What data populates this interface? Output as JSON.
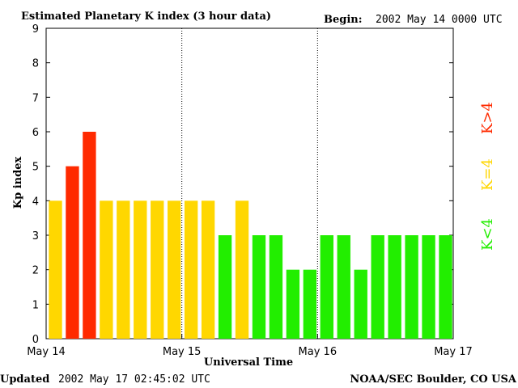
{
  "header": {
    "title": "Estimated Planetary K index (3 hour data)",
    "begin_label": "Begin:",
    "begin_value": "2002 May 14 0000 UTC"
  },
  "footer": {
    "updated_label": "Updated",
    "updated_value": "2002 May 17 02:45:02 UTC",
    "source": "NOAA/SEC Boulder, CO USA"
  },
  "legend": {
    "items": [
      {
        "label": "K<4",
        "color": "#22ee00"
      },
      {
        "label": "K=4",
        "color": "#ffd700"
      },
      {
        "label": "K>4",
        "color": "#ff2a00"
      }
    ]
  },
  "chart_data": {
    "type": "bar",
    "title": "Estimated Planetary K index (3 hour data)",
    "xlabel": "Universal Time",
    "ylabel": "Kp index",
    "ylim": [
      0,
      9
    ],
    "yticks": [
      0,
      1,
      2,
      3,
      4,
      5,
      6,
      7,
      8,
      9
    ],
    "x_tick_labels": [
      "May 14",
      "May 15",
      "May 16",
      "May 17"
    ],
    "day_dividers": "dotted",
    "values": [
      4,
      5,
      6,
      4,
      4,
      4,
      4,
      4,
      4,
      4,
      3,
      4,
      3,
      3,
      2,
      2,
      3,
      3,
      2,
      3,
      3,
      3,
      3,
      3
    ],
    "colors": {
      "below": "#22ee00",
      "equal": "#ffd700",
      "above": "#ff2a00"
    }
  }
}
